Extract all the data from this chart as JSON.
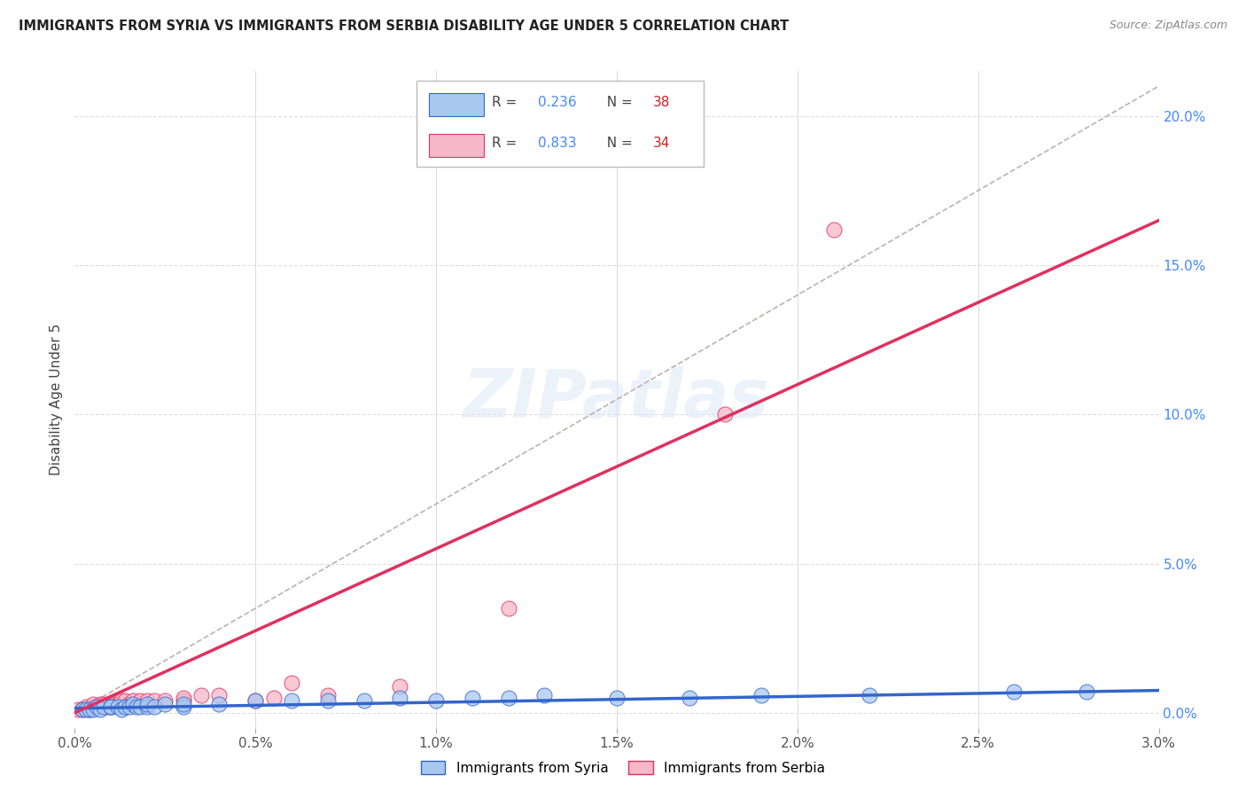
{
  "title": "IMMIGRANTS FROM SYRIA VS IMMIGRANTS FROM SERBIA DISABILITY AGE UNDER 5 CORRELATION CHART",
  "source": "Source: ZipAtlas.com",
  "ylabel": "Disability Age Under 5",
  "legend_syria": "Immigrants from Syria",
  "legend_serbia": "Immigrants from Serbia",
  "R_syria": 0.236,
  "N_syria": 38,
  "R_serbia": 0.833,
  "N_serbia": 34,
  "xlim": [
    0.0,
    0.03
  ],
  "ylim": [
    -0.005,
    0.215
  ],
  "yticks_right": [
    0.0,
    0.05,
    0.1,
    0.15,
    0.2
  ],
  "ytick_labels_right": [
    "0.0%",
    "5.0%",
    "10.0%",
    "15.0%",
    "20.0%"
  ],
  "xticks": [
    0.0,
    0.005,
    0.01,
    0.015,
    0.02,
    0.025,
    0.03
  ],
  "xtick_labels": [
    "0.0%",
    "0.5%",
    "1.0%",
    "1.5%",
    "2.0%",
    "2.5%",
    "3.0%"
  ],
  "color_syria": "#a8c8f0",
  "color_serbia": "#f5b8c8",
  "line_color_syria": "#3366cc",
  "line_color_serbia": "#e03060",
  "watermark": "ZIPatlas",
  "syria_x": [
    0.0002,
    0.0003,
    0.0004,
    0.0005,
    0.0006,
    0.0007,
    0.0008,
    0.001,
    0.001,
    0.0012,
    0.0013,
    0.0014,
    0.0015,
    0.0016,
    0.0017,
    0.0018,
    0.002,
    0.002,
    0.0022,
    0.0025,
    0.003,
    0.003,
    0.004,
    0.005,
    0.006,
    0.007,
    0.008,
    0.009,
    0.01,
    0.011,
    0.012,
    0.013,
    0.015,
    0.017,
    0.019,
    0.022,
    0.026,
    0.028
  ],
  "syria_y": [
    0.001,
    0.001,
    0.001,
    0.001,
    0.002,
    0.001,
    0.002,
    0.002,
    0.002,
    0.002,
    0.001,
    0.002,
    0.002,
    0.003,
    0.002,
    0.002,
    0.002,
    0.003,
    0.002,
    0.003,
    0.002,
    0.003,
    0.003,
    0.004,
    0.004,
    0.004,
    0.004,
    0.005,
    0.004,
    0.005,
    0.005,
    0.006,
    0.005,
    0.005,
    0.006,
    0.006,
    0.007,
    0.007
  ],
  "serbia_x": [
    0.0001,
    0.0002,
    0.0003,
    0.0004,
    0.0005,
    0.0005,
    0.0006,
    0.0007,
    0.0008,
    0.0009,
    0.001,
    0.001,
    0.0011,
    0.0012,
    0.0013,
    0.0014,
    0.0015,
    0.0016,
    0.0018,
    0.002,
    0.0022,
    0.0025,
    0.003,
    0.003,
    0.0035,
    0.004,
    0.005,
    0.0055,
    0.006,
    0.007,
    0.009,
    0.012,
    0.018,
    0.021
  ],
  "serbia_y": [
    0.001,
    0.001,
    0.002,
    0.001,
    0.002,
    0.003,
    0.002,
    0.003,
    0.003,
    0.002,
    0.003,
    0.002,
    0.003,
    0.003,
    0.004,
    0.004,
    0.003,
    0.004,
    0.004,
    0.004,
    0.004,
    0.004,
    0.004,
    0.005,
    0.006,
    0.006,
    0.004,
    0.005,
    0.01,
    0.006,
    0.009,
    0.035,
    0.1,
    0.162
  ],
  "serbia_line_x": [
    0.0,
    0.03
  ],
  "serbia_line_y": [
    0.0,
    0.165
  ],
  "syria_line_x": [
    0.0,
    0.03
  ],
  "syria_line_y": [
    0.0015,
    0.0075
  ],
  "dash_line_x": [
    0.0,
    0.03
  ],
  "dash_line_y": [
    0.0,
    0.21
  ]
}
